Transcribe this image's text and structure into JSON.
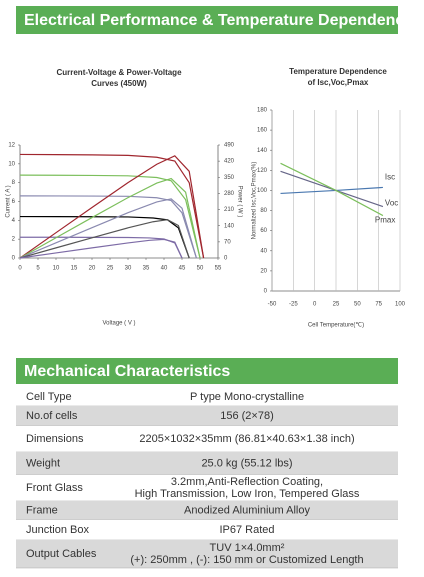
{
  "header": {
    "title": "Electrical Performance & Temperature Dependence"
  },
  "chart_data": [
    {
      "type": "line",
      "title": [
        "Current-Voltage & Power-Voltage",
        "Curves (450W)"
      ],
      "x_label": "Voltage ( V )",
      "y_label": "Current ( A )",
      "y2_label": "Power ( W )",
      "xlim": [
        0,
        55
      ],
      "xticks": [
        0,
        5,
        10,
        15,
        20,
        25,
        30,
        35,
        40,
        45,
        50,
        55
      ],
      "ylim": [
        0,
        12
      ],
      "yticks": [
        0,
        2,
        4,
        6,
        8,
        10,
        12
      ],
      "y2lim": [
        0,
        490
      ],
      "y2ticks": [
        0,
        70,
        140,
        210,
        280,
        350,
        420,
        490
      ],
      "series": [
        {
          "color": "#a0262e",
          "x": [
            0,
            10,
            20,
            30,
            38,
            43,
            47,
            51
          ],
          "values": [
            11,
            10.98,
            10.95,
            10.9,
            10.7,
            10.3,
            8,
            0
          ]
        },
        {
          "color": "#7cbf5c",
          "x": [
            0,
            10,
            20,
            30,
            38,
            42,
            46,
            50
          ],
          "values": [
            8.8,
            8.79,
            8.77,
            8.73,
            8.55,
            8.2,
            6.2,
            0
          ]
        },
        {
          "color": "#8a8ab0",
          "x": [
            0,
            10,
            20,
            30,
            38,
            42,
            45,
            49
          ],
          "values": [
            6.6,
            6.59,
            6.58,
            6.55,
            6.4,
            6.1,
            4.8,
            0
          ]
        },
        {
          "color": "#000000",
          "x": [
            0,
            10,
            20,
            30,
            37,
            41,
            44,
            47
          ],
          "values": [
            4.4,
            4.39,
            4.38,
            4.36,
            4.25,
            4.05,
            3.2,
            0
          ]
        },
        {
          "color": "#7d6ba6",
          "x": [
            0,
            10,
            20,
            30,
            36,
            40,
            43,
            45
          ],
          "values": [
            2.2,
            2.2,
            2.19,
            2.18,
            2.13,
            2.02,
            1.6,
            0
          ]
        },
        {
          "color": "#a0262e",
          "axis": "y2",
          "x": [
            0,
            10,
            20,
            30,
            38,
            43,
            47,
            51
          ],
          "values": [
            0,
            109.8,
            219,
            327,
            406.6,
            442.9,
            376,
            0
          ]
        },
        {
          "color": "#7cbf5c",
          "axis": "y2",
          "x": [
            0,
            10,
            20,
            30,
            38,
            42,
            46,
            50
          ],
          "values": [
            0,
            87.9,
            175.4,
            261.9,
            324.9,
            344.4,
            285.2,
            0
          ]
        },
        {
          "color": "#8a8ab0",
          "axis": "y2",
          "x": [
            0,
            10,
            20,
            30,
            38,
            42,
            45,
            49
          ],
          "values": [
            0,
            65.9,
            131.6,
            196.5,
            243.2,
            256.2,
            216,
            0
          ]
        },
        {
          "color": "#555555",
          "axis": "y2",
          "x": [
            0,
            10,
            20,
            30,
            37,
            41,
            44,
            47
          ],
          "values": [
            0,
            43.9,
            87.6,
            130.8,
            157.3,
            166.1,
            140.8,
            0
          ]
        },
        {
          "color": "#7d6ba6",
          "axis": "y2",
          "x": [
            0,
            10,
            20,
            30,
            36,
            40,
            43,
            45
          ],
          "values": [
            0,
            22,
            43.8,
            65.4,
            76.7,
            80.8,
            68.8,
            0
          ]
        }
      ]
    },
    {
      "type": "line",
      "title": [
        "Temperature Dependence",
        "of Isc,Voc,Pmax"
      ],
      "x_label": "Cell Temperature(℃)",
      "y_label": "Normalized Isc,Voc,Pmax(%)",
      "xlim": [
        -50,
        100
      ],
      "xticks": [
        -50,
        -25,
        0,
        25,
        50,
        75,
        100
      ],
      "ylim": [
        0,
        180
      ],
      "yticks": [
        0,
        20,
        40,
        60,
        80,
        100,
        120,
        140,
        160,
        180
      ],
      "grid": true,
      "series": [
        {
          "name": "Isc",
          "color": "#4a78b0",
          "x": [
            -40,
            25,
            80
          ],
          "values": [
            97,
            100,
            103
          ]
        },
        {
          "name": "Voc",
          "color": "#666688",
          "x": [
            -40,
            25,
            80
          ],
          "values": [
            119,
            100,
            84
          ]
        },
        {
          "name": "Pmax",
          "color": "#7cbf5c",
          "x": [
            -40,
            25,
            80
          ],
          "values": [
            127,
            100,
            75
          ]
        }
      ]
    }
  ],
  "mechanical": {
    "title": "Mechanical Characteristics",
    "rows": [
      [
        "Cell Type",
        [
          "P type Mono-crystalline"
        ]
      ],
      [
        "No.of cells",
        [
          "156 (2×78)"
        ]
      ],
      [
        "Dimensions",
        [
          "2205×1032×35mm (86.81×40.63×1.38 inch)"
        ]
      ],
      [
        "Weight",
        [
          "25.0 kg (55.12 lbs)"
        ]
      ],
      [
        "Front Glass",
        [
          "3.2mm,Anti-Reflection Coating,",
          "High Transmission, Low Iron, Tempered Glass"
        ]
      ],
      [
        "Frame",
        [
          "Anodized Aluminium Alloy"
        ]
      ],
      [
        "Junction Box",
        [
          "IP67 Rated"
        ]
      ],
      [
        "Output Cables",
        [
          "TUV 1×4.0mm²",
          "(+): 250mm , (-): 150 mm or Customized Length"
        ]
      ]
    ]
  }
}
